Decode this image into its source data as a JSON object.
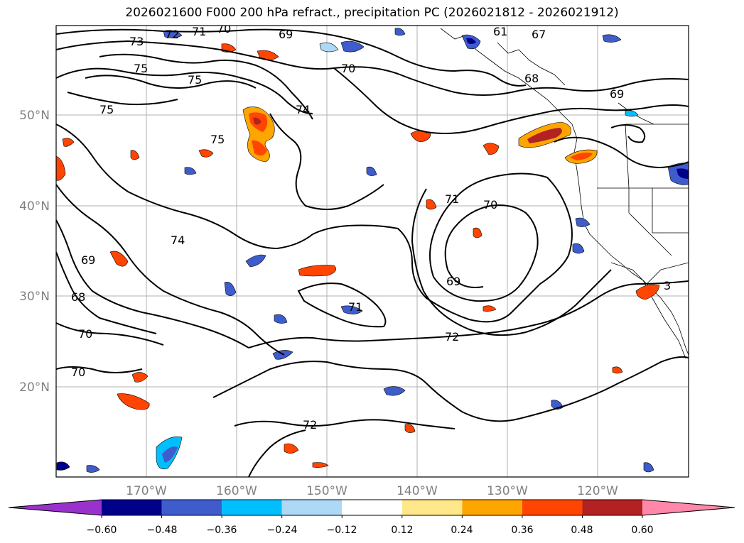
{
  "title": "2026021600 F000 200 hPa refract., precipitation PC (2026021812 - 2026021912)",
  "lat_labels": [
    "50°N",
    "40°N",
    "30°N",
    "20°N"
  ],
  "lon_labels": [
    "170°W",
    "160°W",
    "150°W",
    "140°W",
    "130°W",
    "120°W"
  ],
  "contour_labels": [
    "73",
    "72",
    "71",
    "70",
    "69",
    "67",
    "61",
    "75",
    "75",
    "75",
    "74",
    "75",
    "70",
    "68",
    "69",
    "71",
    "70",
    "74",
    "69",
    "68",
    "70",
    "70",
    "69",
    "71",
    "72",
    "72",
    "3"
  ],
  "colorbar": {
    "tick_labels": [
      "−0.60",
      "−0.48",
      "−0.36",
      "−0.24",
      "−0.12",
      "0.12",
      "0.24",
      "0.36",
      "0.48",
      "0.60"
    ],
    "colors": [
      "#9932cc",
      "#00008b",
      "#3f5ccc",
      "#00bfff",
      "#add8f6",
      "#ffffff",
      "#ffe88a",
      "#ffa500",
      "#ff4500",
      "#b22222",
      "#ff88aa"
    ]
  },
  "colors": {
    "contour": "#000000",
    "grid": "#b0b0b0",
    "coast": "#000000"
  }
}
